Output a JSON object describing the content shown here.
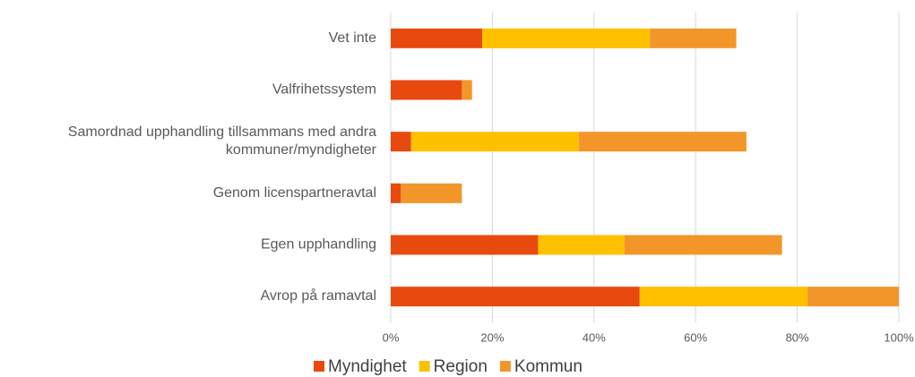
{
  "chart_data": {
    "type": "stacked_barh",
    "categories": [
      "Vet inte",
      "Valfrihetssystem",
      "Samordnad upphandling tillsammans med andra\nkommuner/myndigheter",
      "Genom licenspartneravtal",
      "Egen upphandling",
      "Avrop på ramavtal"
    ],
    "series": [
      {
        "name": "Myndighet",
        "color": "#e8490f",
        "values": [
          18,
          14,
          4,
          2,
          29,
          49
        ]
      },
      {
        "name": "Region",
        "color": "#ffc000",
        "values": [
          33,
          0,
          33,
          0,
          17,
          33
        ]
      },
      {
        "name": "Kommun",
        "color": "#f3962a",
        "values": [
          17,
          2,
          33,
          12,
          31,
          18
        ]
      }
    ],
    "xlim": [
      0,
      100
    ],
    "xticks": [
      {
        "value": 0,
        "label": "0%"
      },
      {
        "value": 20,
        "label": "20%"
      },
      {
        "value": 40,
        "label": "40%"
      },
      {
        "value": 60,
        "label": "60%"
      },
      {
        "value": 80,
        "label": "80%"
      },
      {
        "value": 100,
        "label": "100%"
      }
    ],
    "grid": true,
    "legend": "bottom"
  }
}
